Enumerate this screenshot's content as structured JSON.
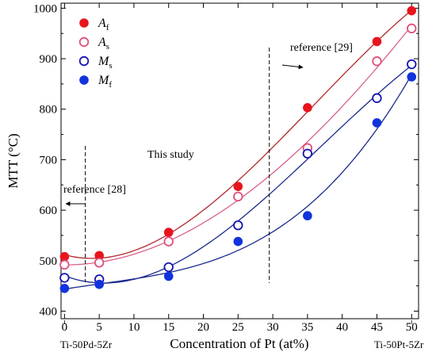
{
  "chart_data": {
    "type": "scatter",
    "xlabel": "Concentration of Pt (at%)",
    "ylabel": "MTT (°C)",
    "xlim": [
      -0.5,
      51
    ],
    "ylim": [
      385,
      1010
    ],
    "x_ticks": [
      0,
      5,
      10,
      15,
      20,
      25,
      30,
      35,
      40,
      45,
      50
    ],
    "y_ticks": [
      400,
      500,
      600,
      700,
      800,
      900,
      1000
    ],
    "legend_position": "top-left",
    "series": [
      {
        "name": "A",
        "sub": "f",
        "marker": "filled",
        "color": "#e8141c",
        "line_color": "#b3282d",
        "x": [
          0,
          5,
          15,
          25,
          35,
          45,
          50
        ],
        "y": [
          508,
          510,
          556,
          647,
          803,
          934,
          995
        ]
      },
      {
        "name": "A",
        "sub": "s",
        "marker": "open",
        "color": "#e0507a",
        "line_color": "#d9608a",
        "x": [
          0,
          5,
          15,
          25,
          35,
          45,
          50
        ],
        "y": [
          492,
          496,
          538,
          627,
          723,
          895,
          960
        ]
      },
      {
        "name": "M",
        "sub": "s",
        "marker": "open",
        "color": "#1515b0",
        "line_color": "#1a2a8c",
        "x": [
          0,
          5,
          15,
          25,
          35,
          45,
          50
        ],
        "y": [
          466,
          463,
          487,
          570,
          712,
          822,
          889
        ]
      },
      {
        "name": "M",
        "sub": "f",
        "marker": "filled",
        "color": "#1133dd",
        "line_color": "#1a2a8c",
        "x": [
          0,
          5,
          15,
          25,
          35,
          45,
          50
        ],
        "y": [
          445,
          453,
          469,
          538,
          589,
          773,
          864
        ]
      }
    ],
    "annotations": {
      "this_study": "This study",
      "ref28": "reference [28]",
      "ref29": "reference [29]",
      "left_composition": "Ti-50Pd-5Zr",
      "right_composition": "Ti-50Pt-5Zr"
    },
    "dashed_lines_x": [
      3,
      29.5
    ]
  }
}
